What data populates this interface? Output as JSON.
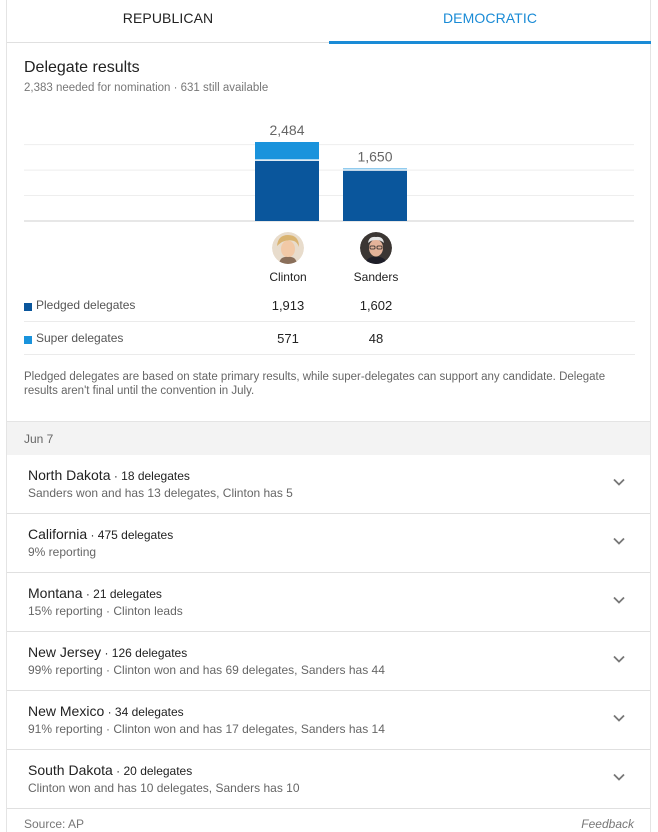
{
  "tabs": [
    {
      "label": "REPUBLICAN"
    },
    {
      "label": "DEMOCRATIC"
    }
  ],
  "header": {
    "title": "Delegate results",
    "subtitle": "2,383 needed for nomination · 631 still available"
  },
  "chart_data": {
    "type": "bar",
    "stacked": true,
    "categories": [
      "Clinton",
      "Sanders"
    ],
    "totals": [
      "2,484",
      "1,650"
    ],
    "series": [
      {
        "name": "Pledged delegates",
        "values": [
          1913,
          1602
        ],
        "color": "#0a569c"
      },
      {
        "name": "Super delegates",
        "values": [
          571,
          48
        ],
        "color": "#1a93dc"
      }
    ],
    "ylim": [
      0,
      2800
    ]
  },
  "candidates": [
    {
      "name": "Clinton",
      "pledged": "1,913",
      "super": "571"
    },
    {
      "name": "Sanders",
      "pledged": "1,602",
      "super": "48"
    }
  ],
  "legend": {
    "pledged_label": "Pledged delegates",
    "super_label": "Super delegates"
  },
  "note": "Pledged delegates are based on state primary results, while super-delegates can support any candidate. Delegate results aren't final until the convention in July.",
  "date": "Jun 7",
  "races": [
    {
      "state": "North Dakota",
      "delegates": " · 18 delegates",
      "info": "Sanders won and has 13 delegates, Clinton has 5"
    },
    {
      "state": "California",
      "delegates": " · 475 delegates",
      "info": "9% reporting"
    },
    {
      "state": "Montana",
      "delegates": " · 21 delegates",
      "info": "15% reporting · Clinton leads"
    },
    {
      "state": "New Jersey",
      "delegates": " · 126 delegates",
      "info": "99% reporting · Clinton won and has 69 delegates, Sanders has 44"
    },
    {
      "state": "New Mexico",
      "delegates": " · 34 delegates",
      "info": "91% reporting · Clinton won and has 17 delegates, Sanders has 14"
    },
    {
      "state": "South Dakota",
      "delegates": " · 20 delegates",
      "info": "Clinton won and has 10 delegates, Sanders has 10"
    }
  ],
  "footer": {
    "source": "Source: AP",
    "feedback": "Feedback"
  },
  "colors": {
    "accent": "#1a8bd6",
    "pledged": "#0a569c",
    "super": "#1a93dc"
  }
}
